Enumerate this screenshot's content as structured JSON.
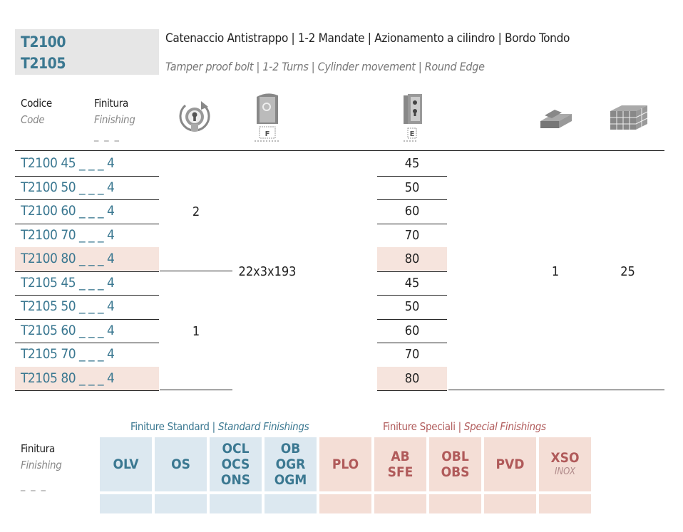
{
  "codes": [
    "T2100",
    "T2105"
  ],
  "title": {
    "it": "Catenaccio Antistrappo | 1-2 Mandate | Azionamento a cilindro | Bordo Tondo",
    "en": "Tamper proof bolt | 1-2 Turns | Cylinder movement | Round Edge"
  },
  "headers": {
    "code_main": "Codice",
    "code_sub": "Code",
    "finish_main": "Finitura",
    "finish_sub": "Finishing",
    "finish_dashes": "_ _ _",
    "f_label": "F",
    "e_label": "E"
  },
  "icons": {
    "turns": "cylinder-turns-icon",
    "faceplate": "faceplate-f-icon",
    "backset": "backset-e-icon",
    "package": "package-icon",
    "box": "box-quantity-icon"
  },
  "rows": [
    {
      "code": "T2100 45 _ _ _ 4",
      "e": "45",
      "highlight": false
    },
    {
      "code": "T2100 50 _ _ _ 4",
      "e": "50",
      "highlight": false
    },
    {
      "code": "T2100 60 _ _ _ 4",
      "e": "60",
      "highlight": false
    },
    {
      "code": "T2100 70 _ _ _ 4",
      "e": "70",
      "highlight": false
    },
    {
      "code": "T2100 80 _ _ _ 4",
      "e": "80",
      "highlight": true
    },
    {
      "code": "T2105 45 _ _ _ 4",
      "e": "45",
      "highlight": false
    },
    {
      "code": "T2105 50 _ _ _ 4",
      "e": "50",
      "highlight": false
    },
    {
      "code": "T2105 60 _ _ _ 4",
      "e": "60",
      "highlight": false
    },
    {
      "code": "T2105 70 _ _ _ 4",
      "e": "70",
      "highlight": false
    },
    {
      "code": "T2105 80 _ _ _ 4",
      "e": "80",
      "highlight": true
    }
  ],
  "turns_group1": "2",
  "turns_group2": "1",
  "faceplate_size": "22x3x193",
  "package_qty": "1",
  "box_qty": "25",
  "finishings": {
    "label_main": "Finitura",
    "label_sub": "Finishing",
    "label_dashes": "_ _ _",
    "standard_it": "Finiture Standard",
    "standard_en": "Standard Finishings",
    "special_it": "Finiture Speciali",
    "special_en": "Special Finishings",
    "standard": [
      "OLV",
      "OS",
      "OCL\nOCS\nONS",
      "OB\nOGR\nOGM"
    ],
    "special": [
      "PLO",
      "AB\nSFE",
      "OBL\nOBS",
      "PVD",
      "XSO"
    ],
    "xso_sub": "INOX"
  },
  "colors": {
    "code_blue": "#3b7891",
    "special_red": "#b05a5a",
    "standard_bg": "#dce8f0",
    "special_bg": "#f4ded6",
    "highlight_bg": "#f6e4dd"
  }
}
